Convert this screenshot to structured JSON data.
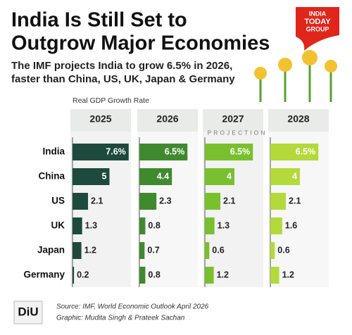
{
  "chart_data": {
    "type": "bar",
    "title": [
      "India Is Still Set to",
      "Outgrow Major Economies"
    ],
    "subtitle": [
      "The IMF projects India to grow 6.5% in 2026,",
      "faster than China, US, UK, Japan & Germany"
    ],
    "axis_label": "Real GDP Growth Rate",
    "projection_label": "PROJECTION",
    "categories": [
      "India",
      "China",
      "US",
      "UK",
      "Japan",
      "Germany"
    ],
    "series": [
      {
        "name": "2025",
        "color": "#1d4a3c",
        "values": [
          7.6,
          5,
          2.1,
          1.3,
          1.2,
          0.2
        ],
        "value_labels": [
          "7.6%",
          "5",
          "2.1",
          "1.3",
          "1.2",
          "0.2"
        ]
      },
      {
        "name": "2026",
        "color": "#3f8a2e",
        "values": [
          6.5,
          4.4,
          2.3,
          0.8,
          0.7,
          0.8
        ],
        "value_labels": [
          "6.5%",
          "4.4",
          "2.3",
          "0.8",
          "0.7",
          "0.8"
        ]
      },
      {
        "name": "2027",
        "color": "#79c02f",
        "values": [
          6.5,
          4,
          2.1,
          1.3,
          0.6,
          1.2
        ],
        "value_labels": [
          "6.5%",
          "4",
          "2.1",
          "1.3",
          "0.6",
          "1.2"
        ]
      },
      {
        "name": "2028",
        "color": "#b3d93a",
        "values": [
          6.5,
          4,
          2.1,
          1.6,
          0.6,
          1.2
        ],
        "value_labels": [
          "6.5%",
          "4",
          "2.1",
          "1.6",
          "0.6",
          "1.2"
        ]
      }
    ],
    "source": "Source: IMF, World Economic Outlook April 2026",
    "credit": "Graphic: Mudita Singh & Prateek Sachan",
    "brand_logo": [
      "INDIA",
      "TODAY",
      "GROUP"
    ],
    "publisher_logo": "DiU"
  }
}
